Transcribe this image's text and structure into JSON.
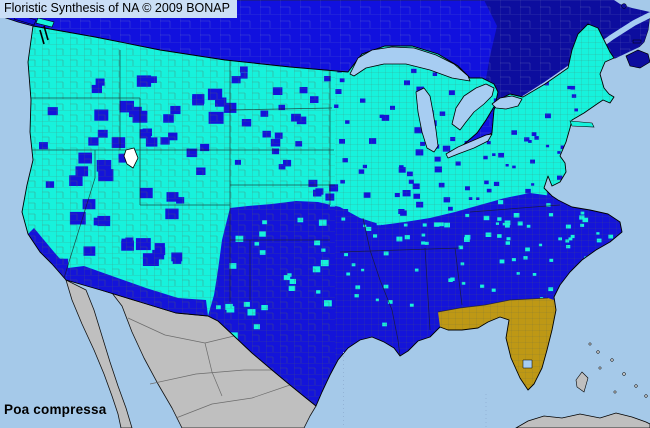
{
  "header": {
    "title": "Floristic Synthesis of NA © 2009 BONAP"
  },
  "footer": {
    "species_label": "Poa compressa"
  },
  "map": {
    "colors": {
      "ocean": "#A5C9E9",
      "us_present_cyan": "#17F2DC",
      "us_county_blue": "#1414D9",
      "canada_blue": "#1111DE",
      "canada_dark_blue": "#0D0D9E",
      "florida_gold": "#BE9815",
      "outside_range_gray": "#BFBFBF",
      "lake_blue": "#A7CDF2",
      "county_line": "#5C6650",
      "coast_line": "#000000",
      "salt_lake_white": "#FFFFFF"
    }
  }
}
